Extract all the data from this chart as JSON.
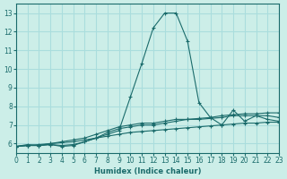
{
  "xlabel": "Humidex (Indice chaleur)",
  "ylabel": "",
  "bg_color": "#cceee8",
  "grid_color": "#aadddd",
  "line_color": "#1a6b6b",
  "xlim": [
    0,
    23
  ],
  "ylim": [
    5.5,
    13.5
  ],
  "xticks": [
    0,
    1,
    2,
    3,
    4,
    5,
    6,
    7,
    8,
    9,
    10,
    11,
    12,
    13,
    14,
    15,
    16,
    17,
    18,
    19,
    20,
    21,
    22,
    23
  ],
  "yticks": [
    6,
    7,
    8,
    9,
    10,
    11,
    12,
    13
  ],
  "series": [
    [
      5.85,
      5.9,
      5.9,
      5.95,
      5.85,
      5.9,
      6.1,
      6.3,
      6.5,
      6.7,
      8.5,
      10.3,
      12.2,
      13.0,
      13.0,
      11.5,
      8.2,
      7.4,
      7.0,
      7.8,
      7.2,
      7.5,
      7.3,
      7.2
    ],
    [
      5.85,
      5.95,
      5.9,
      5.95,
      5.9,
      5.95,
      6.1,
      6.3,
      6.6,
      6.8,
      6.9,
      7.0,
      7.0,
      7.1,
      7.2,
      7.3,
      7.3,
      7.35,
      7.4,
      7.5,
      7.5,
      7.5,
      7.5,
      7.4
    ],
    [
      5.85,
      5.9,
      5.9,
      6.0,
      6.1,
      6.2,
      6.3,
      6.5,
      6.7,
      6.9,
      7.0,
      7.1,
      7.1,
      7.2,
      7.3,
      7.3,
      7.35,
      7.4,
      7.5,
      7.55,
      7.6,
      7.6,
      7.65,
      7.65
    ],
    [
      5.85,
      5.9,
      5.95,
      6.0,
      6.05,
      6.1,
      6.2,
      6.3,
      6.4,
      6.5,
      6.6,
      6.65,
      6.7,
      6.75,
      6.8,
      6.85,
      6.9,
      6.95,
      7.0,
      7.05,
      7.1,
      7.1,
      7.15,
      7.15
    ]
  ]
}
